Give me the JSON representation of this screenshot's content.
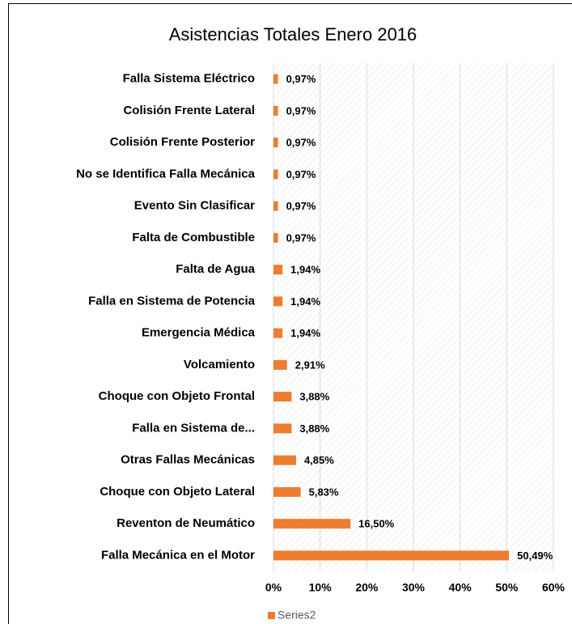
{
  "chart_data": {
    "type": "bar",
    "orientation": "horizontal",
    "title": "Asistencias Totales Enero 2016",
    "categories": [
      "Falla Sistema Eléctrico",
      "Colisión Frente Lateral",
      "Colisión Frente Posterior",
      "No se Identifica Falla Mecánica",
      "Evento Sin Clasificar",
      "Falta de Combustible",
      "Falta de Agua",
      "Falla en Sistema de Potencia",
      "Emergencia Médica",
      "Volcamiento",
      "Choque con Objeto Frontal",
      "Falla en Sistema de...",
      "Otras Fallas Mecánicas",
      "Choque con Objeto Lateral",
      "Reventon de Neumático",
      "Falla Mecánica en el Motor"
    ],
    "series": [
      {
        "name": "Series2",
        "color": "#ed7d31",
        "values": [
          0.97,
          0.97,
          0.97,
          0.97,
          0.97,
          0.97,
          1.94,
          1.94,
          1.94,
          2.91,
          3.88,
          3.88,
          4.85,
          5.83,
          16.5,
          50.49
        ],
        "value_labels": [
          "0,97%",
          "0,97%",
          "0,97%",
          "0,97%",
          "0,97%",
          "0,97%",
          "1,94%",
          "1,94%",
          "1,94%",
          "2,91%",
          "3,88%",
          "3,88%",
          "4,85%",
          "5,83%",
          "16,50%",
          "50,49%"
        ]
      }
    ],
    "xlim": [
      0,
      60
    ],
    "xticks": [
      {
        "value": 0,
        "label": "0%"
      },
      {
        "value": 10,
        "label": "10%"
      },
      {
        "value": 20,
        "label": "20%"
      },
      {
        "value": 30,
        "label": "30%"
      },
      {
        "value": 40,
        "label": "40%"
      },
      {
        "value": 50,
        "label": "50%"
      },
      {
        "value": 60,
        "label": "60%"
      }
    ],
    "grid": true,
    "legend": "bottom"
  }
}
